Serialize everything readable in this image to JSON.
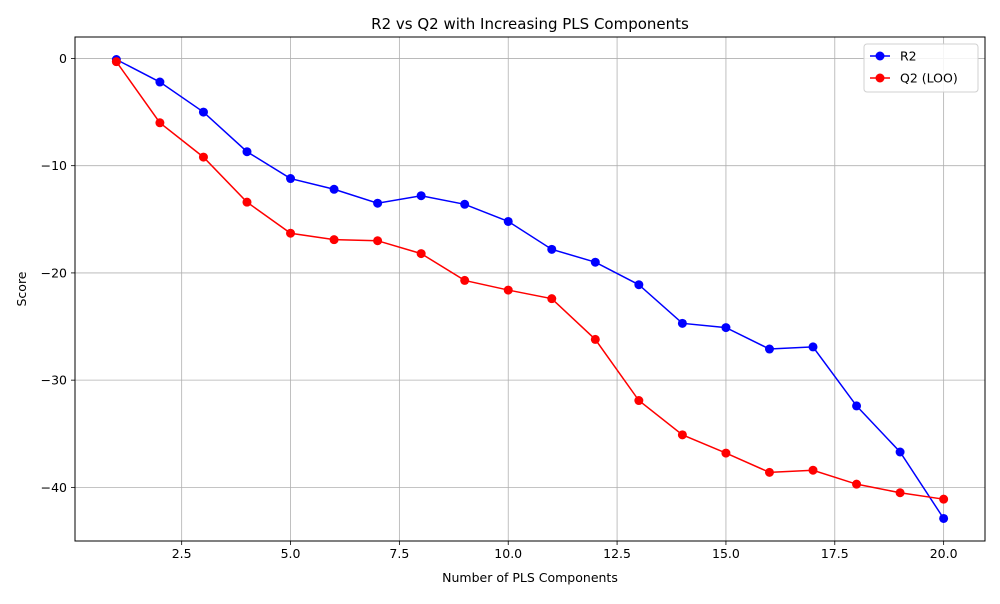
{
  "chart_data": {
    "type": "line",
    "title": "R2 vs Q2 with Increasing PLS Components",
    "xlabel": "Number of PLS Components",
    "ylabel": "Score",
    "xlim": [
      0.05,
      20.95
    ],
    "ylim": [
      -45.0,
      2.0
    ],
    "xticks": [
      2.5,
      5.0,
      7.5,
      10.0,
      12.5,
      15.0,
      17.5,
      20.0
    ],
    "xtick_labels": [
      "2.5",
      "5.0",
      "7.5",
      "10.0",
      "12.5",
      "15.0",
      "17.5",
      "20.0"
    ],
    "yticks": [
      0,
      -10,
      -20,
      -30,
      -40
    ],
    "ytick_labels": [
      "0",
      "−10",
      "−20",
      "−30",
      "−40"
    ],
    "grid": true,
    "legend_position": "top-right",
    "x": [
      1,
      2,
      3,
      4,
      5,
      6,
      7,
      8,
      9,
      10,
      11,
      12,
      13,
      14,
      15,
      16,
      17,
      18,
      19,
      20
    ],
    "series": [
      {
        "name": "R2",
        "color": "#0000ff",
        "marker": "circle",
        "values": [
          -0.1,
          -2.2,
          -5.0,
          -8.7,
          -11.2,
          -12.2,
          -13.5,
          -12.8,
          -13.6,
          -15.2,
          -17.8,
          -19.0,
          -21.1,
          -24.7,
          -25.1,
          -27.1,
          -26.9,
          -32.4,
          -36.7,
          -42.9
        ]
      },
      {
        "name": "Q2 (LOO)",
        "color": "#ff0000",
        "marker": "circle",
        "values": [
          -0.3,
          -6.0,
          -9.2,
          -13.4,
          -16.3,
          -16.9,
          -17.0,
          -18.2,
          -20.7,
          -21.6,
          -22.4,
          -26.2,
          -31.9,
          -35.1,
          -36.8,
          -38.6,
          -38.4,
          -39.7,
          -40.5,
          -41.1
        ]
      }
    ]
  }
}
